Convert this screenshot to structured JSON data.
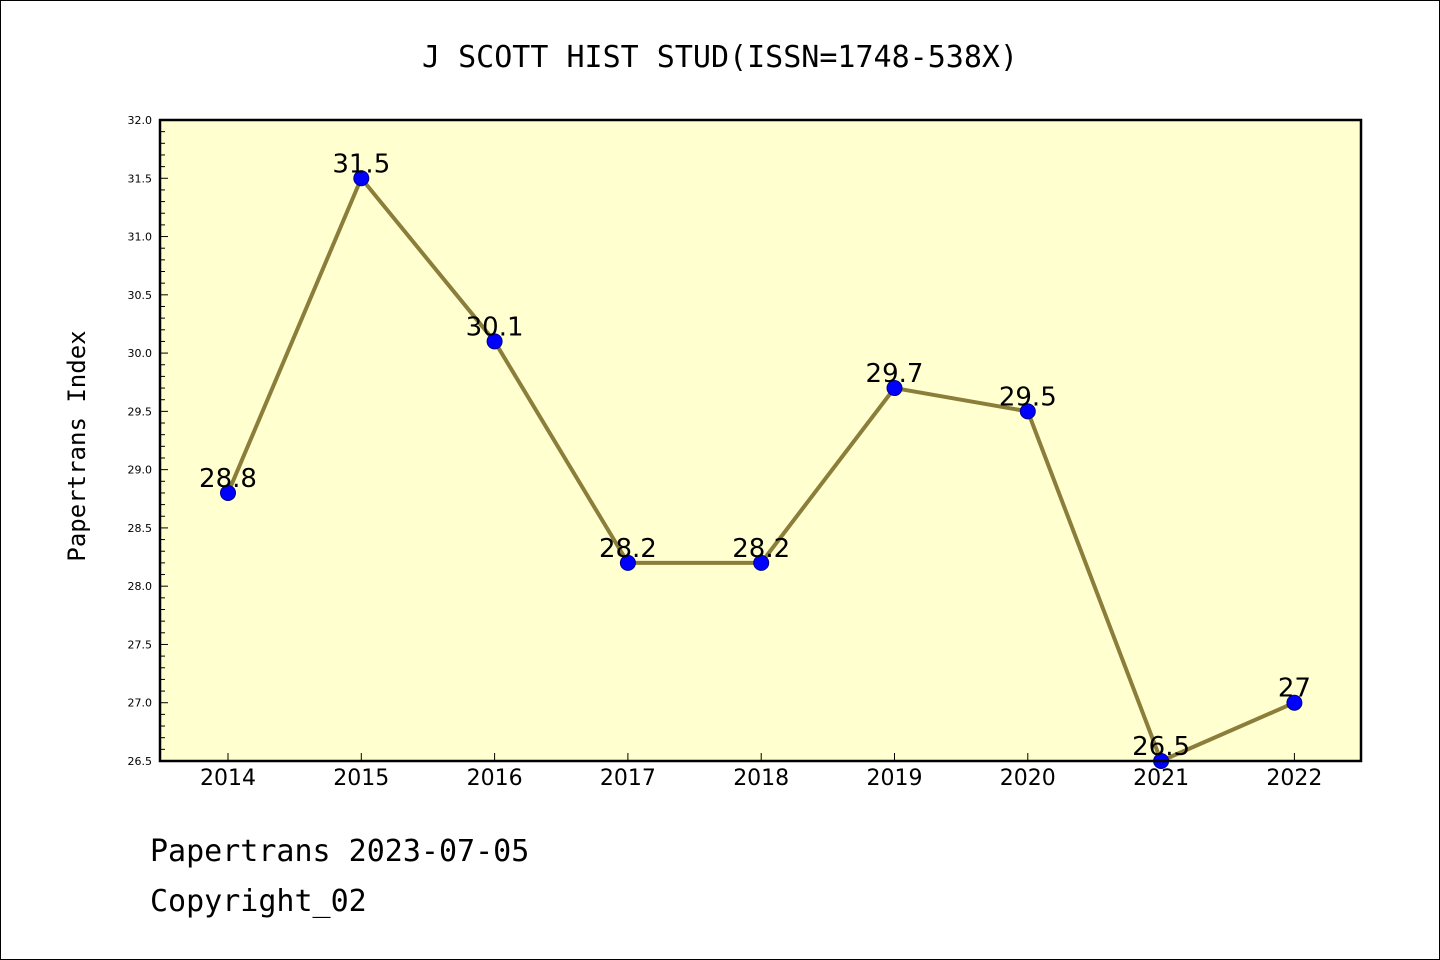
{
  "chart_data": {
    "type": "line",
    "title": "J SCOTT HIST STUD(ISSN=1748-538X)",
    "xlabel": "",
    "ylabel": "Papertrans Index",
    "categories": [
      "2014",
      "2015",
      "2016",
      "2017",
      "2018",
      "2019",
      "2020",
      "2021",
      "2022"
    ],
    "series": [
      {
        "values": [
          28.8,
          31.5,
          30.1,
          28.2,
          28.2,
          29.7,
          29.5,
          26.5,
          27
        ],
        "data_labels": [
          "28.8",
          "31.5",
          "30.1",
          "28.2",
          "28.2",
          "29.7",
          "29.5",
          "26.5",
          "27"
        ]
      }
    ],
    "ylim": [
      26.5,
      32.0
    ],
    "yticks": [
      "26.5",
      "27.0",
      "27.5",
      "28.0",
      "28.5",
      "29.0",
      "29.5",
      "30.0",
      "30.5",
      "31.0",
      "31.5",
      "32.0"
    ],
    "grid": false,
    "colors": {
      "plot_background": "#ffffd0",
      "line": "#8b7d3a",
      "marker": "#0000ff"
    }
  },
  "footer": {
    "line1": "Papertrans 2023-07-05",
    "line2": "Copyright_02"
  }
}
